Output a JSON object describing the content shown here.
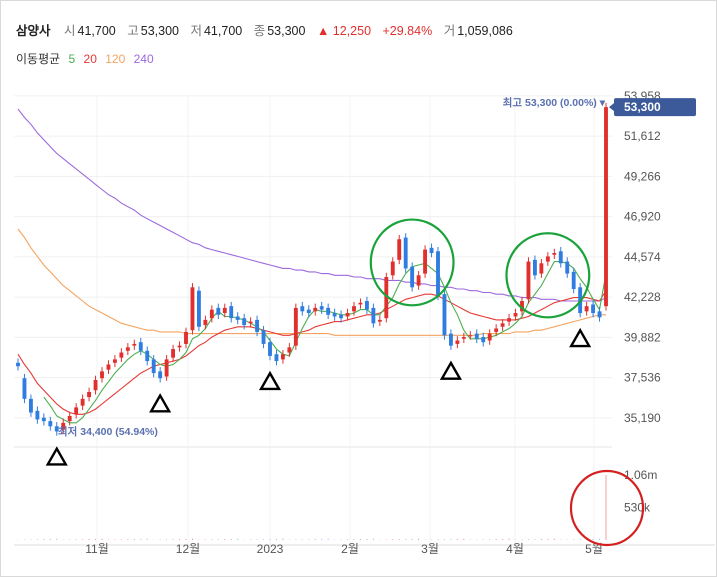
{
  "header": {
    "name": "삼양사",
    "open_label": "시",
    "open": "41,700",
    "high_label": "고",
    "high": "53,300",
    "low_label": "저",
    "low": "41,700",
    "close_label": "종",
    "close": "53,300",
    "change": "▲ 12,250",
    "change_pct": "+29.84%",
    "volume_label": "거",
    "volume": "1,059,086"
  },
  "moving_average": {
    "label": "이동평균",
    "periods": [
      {
        "value": "5",
        "color": "#4caf50"
      },
      {
        "value": "20",
        "color": "#e53935"
      },
      {
        "value": "120",
        "color": "#f4a460"
      },
      {
        "value": "240",
        "color": "#9c6ade"
      }
    ]
  },
  "chart_data": {
    "type": "candlestick",
    "y_ticks": [
      "53,958",
      "51,612",
      "49,266",
      "46,920",
      "44,574",
      "42,228",
      "39,882",
      "37,536",
      "35,190"
    ],
    "ylim": [
      33900,
      54300
    ],
    "x_ticks": [
      "11월",
      "12월",
      "2023",
      "2월",
      "3월",
      "4월",
      "5월"
    ],
    "price_tag": "53,300",
    "high_note": "최고 53,300 (0.00%) ▾",
    "low_note": "최저 34,400 (54.94%)",
    "volume_ticks": [
      "1.06m",
      "530k"
    ],
    "volume_max": 1060000,
    "last_volume": 1059086,
    "close_prices": [
      38200,
      36300,
      35500,
      35100,
      35000,
      34700,
      34400,
      34900,
      35300,
      35800,
      36300,
      36700,
      37400,
      37900,
      38300,
      38600,
      39000,
      39300,
      39500,
      39100,
      38500,
      37800,
      37500,
      38600,
      39200,
      39400,
      40200,
      42800,
      40500,
      40900,
      41500,
      41200,
      41600,
      41000,
      40900,
      40600,
      40800,
      40200,
      39500,
      38800,
      38500,
      38900,
      39300,
      41600,
      41400,
      41300,
      41600,
      41500,
      41200,
      41100,
      41000,
      41300,
      41700,
      41900,
      41500,
      40700,
      40900,
      43400,
      44300,
      45600,
      43900,
      42800,
      43500,
      45000,
      44800,
      42300,
      40000,
      39400,
      39700,
      39900,
      40000,
      39800,
      39600,
      40100,
      40400,
      40700,
      41000,
      41300,
      42000,
      44300,
      43500,
      44200,
      44600,
      44800,
      44200,
      43600,
      42700,
      41300,
      41700,
      41300,
      41050,
      53300
    ],
    "open_prices": [
      38400,
      37500,
      36300,
      35600,
      35200,
      35000,
      34700,
      34500,
      35000,
      35400,
      35900,
      36400,
      36800,
      37500,
      38000,
      38400,
      38700,
      39100,
      39400,
      39600,
      39100,
      38600,
      37900,
      37600,
      38700,
      39300,
      39500,
      40300,
      42600,
      40600,
      41000,
      41600,
      41300,
      41700,
      41100,
      41000,
      40700,
      40900,
      40300,
      39600,
      38900,
      38600,
      39000,
      39400,
      41700,
      41500,
      41400,
      41700,
      41600,
      41300,
      41200,
      41100,
      41400,
      41800,
      42000,
      41600,
      40800,
      41000,
      43500,
      44400,
      45700,
      44000,
      42900,
      43600,
      45100,
      44900,
      42400,
      40100,
      39500,
      39800,
      40000,
      40100,
      39900,
      39700,
      40200,
      40500,
      40800,
      41100,
      41400,
      42100,
      44400,
      43600,
      44300,
      44700,
      44900,
      44300,
      43700,
      42800,
      41400,
      41800,
      41400,
      41700
    ],
    "ma5": [
      null,
      null,
      null,
      null,
      36400,
      35900,
      35300,
      35100,
      34900,
      34900,
      35200,
      35700,
      36200,
      36800,
      37300,
      37800,
      38200,
      38600,
      38900,
      39100,
      38900,
      38600,
      38300,
      38200,
      38300,
      38600,
      39000,
      39800,
      40000,
      40400,
      41000,
      41400,
      41100,
      41100,
      41000,
      40900,
      40700,
      40500,
      40200,
      39700,
      39200,
      38900,
      38800,
      39600,
      40400,
      41100,
      41500,
      41400,
      41400,
      41300,
      41200,
      41200,
      41300,
      41500,
      41500,
      41200,
      41200,
      41700,
      42200,
      43000,
      43600,
      44000,
      44100,
      44200,
      43900,
      43600,
      42800,
      41900,
      41200,
      40300,
      39800,
      39800,
      39800,
      39900,
      40000,
      40200,
      40400,
      40700,
      41100,
      41900,
      42400,
      42900,
      43600,
      44300,
      44300,
      44200,
      43900,
      43300,
      42800,
      42100,
      41500,
      43600
    ],
    "ma20": [
      38900,
      38300,
      37800,
      37200,
      36800,
      36400,
      36000,
      35700,
      35500,
      35400,
      35400,
      35500,
      35700,
      36000,
      36300,
      36600,
      36900,
      37200,
      37500,
      37800,
      38000,
      38200,
      38300,
      38400,
      38500,
      38600,
      38800,
      39100,
      39400,
      39600,
      39900,
      40100,
      40300,
      40400,
      40500,
      40500,
      40500,
      40400,
      40300,
      40200,
      40100,
      40000,
      40000,
      40100,
      40200,
      40300,
      40500,
      40600,
      40700,
      40800,
      40800,
      40900,
      41000,
      41100,
      41200,
      41200,
      41300,
      41500,
      41700,
      41900,
      42100,
      42200,
      42300,
      42400,
      42400,
      42300,
      42100,
      41900,
      41700,
      41500,
      41300,
      41200,
      41100,
      41000,
      40900,
      40900,
      40900,
      40900,
      41000,
      41100,
      41300,
      41500,
      41700,
      41900,
      42000,
      42100,
      42200,
      42200,
      42200,
      42100,
      42000,
      42600
    ],
    "ma120": [
      46200,
      45700,
      45100,
      44600,
      44100,
      43700,
      43300,
      42900,
      42600,
      42300,
      42000,
      41700,
      41500,
      41300,
      41100,
      40900,
      40700,
      40600,
      40500,
      40400,
      40300,
      40300,
      40200,
      40200,
      40200,
      40200,
      40100,
      40100,
      40100,
      40100,
      40100,
      40100,
      40100,
      40100,
      40100,
      40100,
      40100,
      40100,
      40100,
      40100,
      40100,
      40100,
      40100,
      40100,
      40100,
      40100,
      40100,
      40100,
      40100,
      40000,
      40000,
      40000,
      40000,
      40000,
      40000,
      40000,
      40000,
      40000,
      40000,
      40000,
      40000,
      40000,
      40000,
      40000,
      40000,
      40000,
      40000,
      40000,
      40000,
      40000,
      40000,
      40000,
      40100,
      40100,
      40100,
      40100,
      40100,
      40200,
      40200,
      40200,
      40300,
      40300,
      40400,
      40500,
      40600,
      40700,
      40800,
      40900,
      41000,
      41100,
      41200,
      41200
    ],
    "ma240": [
      53200,
      52700,
      52300,
      51800,
      51400,
      51000,
      50600,
      50300,
      50000,
      49700,
      49400,
      49100,
      48800,
      48500,
      48200,
      48000,
      47700,
      47500,
      47300,
      47000,
      46800,
      46600,
      46400,
      46200,
      46000,
      45800,
      45600,
      45400,
      45300,
      45100,
      45000,
      44900,
      44800,
      44700,
      44600,
      44500,
      44400,
      44300,
      44200,
      44100,
      44000,
      43900,
      43900,
      43800,
      43800,
      43700,
      43700,
      43600,
      43600,
      43500,
      43500,
      43500,
      43400,
      43400,
      43300,
      43300,
      43300,
      43200,
      43200,
      43200,
      43100,
      43100,
      43000,
      43000,
      42900,
      42900,
      42800,
      42800,
      42700,
      42700,
      42600,
      42600,
      42500,
      42500,
      42400,
      42400,
      42300,
      42300,
      42200,
      42200,
      42200,
      42100,
      42100,
      42100,
      42000,
      42000,
      42000,
      42000,
      42000,
      42000,
      42000,
      42200
    ],
    "triangle_marker_indices": [
      6,
      22,
      39,
      67,
      87
    ],
    "circle_annotation_ranges": [
      [
        58,
        64
      ],
      [
        79,
        85
      ]
    ]
  }
}
